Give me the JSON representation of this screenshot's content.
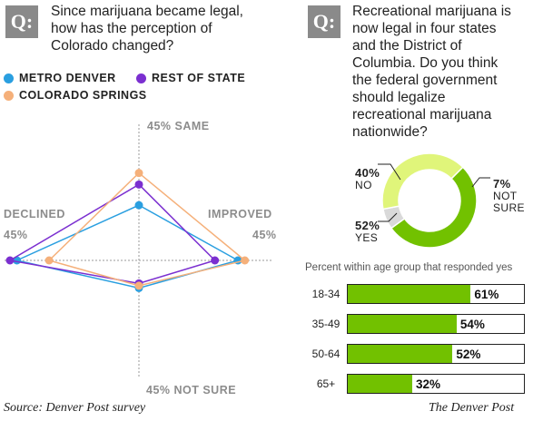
{
  "left": {
    "q_badge": "Q:",
    "question": [
      "Since marijuana became legal,",
      "how has the perception of",
      "Colorado changed?"
    ]
  },
  "right": {
    "q_badge": "Q:",
    "question": [
      "Recreational marijuana is",
      "now legal in four states",
      "and the District of",
      "Columbia. Do you think",
      "the federal government",
      "should legalize",
      "recreational marijuana",
      "nationwide?"
    ]
  },
  "colors": {
    "metro_denver": "#2a9fe0",
    "rest_of_state": "#7b2fd0",
    "colorado_springs": "#f5b07a",
    "yes": "#72c100",
    "no": "#e0f57a",
    "not_sure": "#d9d9d9",
    "axis": "#9a9a9a"
  },
  "footer": {
    "source": "Source: Denver Post survey",
    "credit": "The Denver Post"
  },
  "chart_data": [
    {
      "type": "radar",
      "axes": [
        {
          "name": "SAME",
          "label": "45% SAME"
        },
        {
          "name": "IMPROVED",
          "label": "IMPROVED",
          "max_label": "45%"
        },
        {
          "name": "NOT SURE",
          "label": "45% NOT SURE"
        },
        {
          "name": "DECLINED",
          "label": "DECLINED",
          "max_label": "45%"
        }
      ],
      "max": 45,
      "series": [
        {
          "name": "METRO DENVER",
          "color_key": "metro_denver",
          "values": {
            "SAME": 24,
            "IMPROVED": 43,
            "NOT SURE": 12,
            "DECLINED": 53
          }
        },
        {
          "name": "REST OF STATE",
          "color_key": "rest_of_state",
          "values": {
            "SAME": 33,
            "IMPROVED": 33,
            "NOT SURE": 10,
            "DECLINED": 56
          }
        },
        {
          "name": "COLORADO SPRINGS",
          "color_key": "colorado_springs",
          "values": {
            "SAME": 38,
            "IMPROVED": 46,
            "NOT SURE": 11,
            "DECLINED": 39
          }
        }
      ],
      "legend": [
        "METRO DENVER",
        "REST OF STATE",
        "COLORADO SPRINGS"
      ]
    },
    {
      "type": "pie",
      "variant": "donut",
      "slices": [
        {
          "name": "YES",
          "value": 52,
          "label": "52%",
          "color_key": "yes"
        },
        {
          "name": "NOT SURE",
          "value": 7,
          "label": "7%",
          "color_key": "not_sure"
        },
        {
          "name": "NO",
          "value": 40,
          "label": "40%",
          "color_key": "no"
        }
      ]
    },
    {
      "type": "bar",
      "orientation": "horizontal",
      "caption": "Percent within age group that responded yes",
      "categories": [
        "18-34",
        "35-49",
        "50-64",
        "65+"
      ],
      "values": [
        61,
        54,
        52,
        32
      ],
      "value_labels": [
        "61%",
        "54%",
        "52%",
        "32%"
      ],
      "xlim": [
        0,
        100
      ]
    }
  ]
}
